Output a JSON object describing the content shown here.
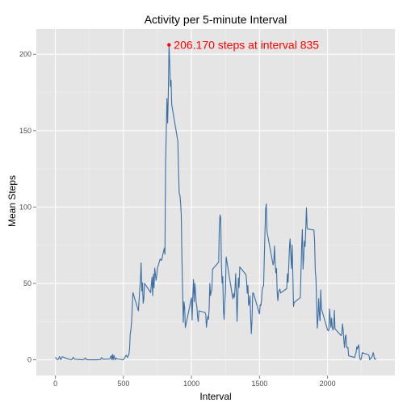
{
  "chart_data": {
    "type": "line",
    "title": "Activity per 5-minute Interval",
    "xlabel": "Interval",
    "ylabel": "Mean Steps",
    "xlim": [
      -140,
      2495
    ],
    "ylim": [
      -10.3,
      216.5
    ],
    "x_ticks": [
      0,
      500,
      1000,
      1500,
      2000
    ],
    "x_tick_labels": [
      "0",
      "500",
      "1000",
      "1500",
      "2000"
    ],
    "y_ticks": [
      0,
      50,
      100,
      150,
      200
    ],
    "y_tick_labels": [
      "0",
      "50",
      "100",
      "150",
      "200"
    ],
    "grid": true,
    "series": [
      {
        "color": "#3a6ea5",
        "points": [
          [
            0,
            1.7
          ],
          [
            10,
            0.3
          ],
          [
            20,
            0.1
          ],
          [
            30,
            2.1
          ],
          [
            40,
            0.0
          ],
          [
            50,
            2.0
          ],
          [
            100,
            0.3
          ],
          [
            110,
            0.2
          ],
          [
            120,
            0.0
          ],
          [
            130,
            1.6
          ],
          [
            140,
            0.5
          ],
          [
            150,
            0.3
          ],
          [
            200,
            0.0
          ],
          [
            210,
            0.3
          ],
          [
            220,
            1.2
          ],
          [
            230,
            0.0
          ],
          [
            240,
            0.0
          ],
          [
            300,
            0.0
          ],
          [
            330,
            0.1
          ],
          [
            340,
            1.5
          ],
          [
            350,
            0.3
          ],
          [
            400,
            0.5
          ],
          [
            410,
            2.6
          ],
          [
            415,
            0.0
          ],
          [
            420,
            3.5
          ],
          [
            425,
            0.0
          ],
          [
            430,
            3.0
          ],
          [
            435,
            1.1
          ],
          [
            440,
            0.0
          ],
          [
            445,
            1.2
          ],
          [
            450,
            0.6
          ],
          [
            500,
            0.0
          ],
          [
            520,
            3.0
          ],
          [
            530,
            1.5
          ],
          [
            540,
            3.5
          ],
          [
            545,
            7.0
          ],
          [
            550,
            17.0
          ],
          [
            555,
            19.5
          ],
          [
            560,
            25.0
          ],
          [
            570,
            44.0
          ],
          [
            580,
            41.0
          ],
          [
            590,
            38.0
          ],
          [
            600,
            35.0
          ],
          [
            610,
            32.0
          ],
          [
            620,
            46.0
          ],
          [
            625,
            52.0
          ],
          [
            630,
            63.5
          ],
          [
            635,
            45.0
          ],
          [
            640,
            50.5
          ],
          [
            645,
            37.0
          ],
          [
            650,
            40.0
          ],
          [
            655,
            50.0
          ],
          [
            700,
            44.0
          ],
          [
            705,
            49.0
          ],
          [
            710,
            54.0
          ],
          [
            715,
            42.0
          ],
          [
            720,
            56.0
          ],
          [
            725,
            47.0
          ],
          [
            730,
            60.0
          ],
          [
            740,
            52.0
          ],
          [
            745,
            55.0
          ],
          [
            750,
            60.0
          ],
          [
            760,
            63.0
          ],
          [
            770,
            66.0
          ],
          [
            780,
            65.0
          ],
          [
            790,
            69.0
          ],
          [
            800,
            73.0
          ],
          [
            805,
            69.0
          ],
          [
            810,
            129.0
          ],
          [
            815,
            150.0
          ],
          [
            820,
            171.0
          ],
          [
            825,
            155.0
          ],
          [
            830,
            175.0
          ],
          [
            835,
            206.2
          ],
          [
            840,
            195.0
          ],
          [
            845,
            179.0
          ],
          [
            850,
            183.0
          ],
          [
            855,
            167.0
          ],
          [
            900,
            143.0
          ],
          [
            905,
            124.0
          ],
          [
            910,
            109.0
          ],
          [
            915,
            108.0
          ],
          [
            920,
            103.0
          ],
          [
            925,
            95.0
          ],
          [
            930,
            66.0
          ],
          [
            935,
            45.0
          ],
          [
            940,
            24.5
          ],
          [
            945,
            38.0
          ],
          [
            950,
            34.5
          ],
          [
            955,
            21.0
          ],
          [
            1000,
            40.5
          ],
          [
            1005,
            26.0
          ],
          [
            1010,
            42.0
          ],
          [
            1015,
            52.5
          ],
          [
            1020,
            38.0
          ],
          [
            1025,
            50.0
          ],
          [
            1030,
            44.0
          ],
          [
            1035,
            37.0
          ],
          [
            1040,
            34.5
          ],
          [
            1045,
            28.0
          ],
          [
            1050,
            25.0
          ],
          [
            1055,
            32.0
          ],
          [
            1100,
            31.0
          ],
          [
            1105,
            29.7
          ],
          [
            1110,
            21.3
          ],
          [
            1115,
            25.5
          ],
          [
            1120,
            28.4
          ],
          [
            1125,
            26.5
          ],
          [
            1130,
            33.4
          ],
          [
            1135,
            50.0
          ],
          [
            1140,
            42.0
          ],
          [
            1145,
            44.6
          ],
          [
            1150,
            46.0
          ],
          [
            1155,
            59.2
          ],
          [
            1200,
            63.9
          ],
          [
            1205,
            87.7
          ],
          [
            1210,
            94.8
          ],
          [
            1215,
            92.8
          ],
          [
            1220,
            63.4
          ],
          [
            1225,
            50.2
          ],
          [
            1230,
            54.5
          ],
          [
            1235,
            32.4
          ],
          [
            1240,
            26.5
          ],
          [
            1245,
            37.7
          ],
          [
            1250,
            45.1
          ],
          [
            1255,
            67.3
          ],
          [
            1300,
            42.3
          ],
          [
            1305,
            39.9
          ],
          [
            1310,
            43.3
          ],
          [
            1315,
            40.9
          ],
          [
            1320,
            46.2
          ],
          [
            1325,
            56.4
          ],
          [
            1330,
            42.8
          ],
          [
            1335,
            25.1
          ],
          [
            1340,
            39.9
          ],
          [
            1345,
            53.5
          ],
          [
            1350,
            47.3
          ],
          [
            1355,
            60.8
          ],
          [
            1400,
            55.8
          ],
          [
            1405,
            51.9
          ],
          [
            1410,
            43.6
          ],
          [
            1415,
            48.7
          ],
          [
            1420,
            35.5
          ],
          [
            1425,
            37.5
          ],
          [
            1430,
            41.8
          ],
          [
            1435,
            27.5
          ],
          [
            1440,
            17.1
          ],
          [
            1445,
            26.1
          ],
          [
            1450,
            43.6
          ],
          [
            1455,
            43.8
          ],
          [
            1500,
            30.0
          ],
          [
            1505,
            36.1
          ],
          [
            1510,
            35.5
          ],
          [
            1515,
            38.8
          ],
          [
            1520,
            45.9
          ],
          [
            1525,
            47.8
          ],
          [
            1530,
            48.1
          ],
          [
            1535,
            65.3
          ],
          [
            1540,
            82.9
          ],
          [
            1545,
            98.7
          ],
          [
            1550,
            102.1
          ],
          [
            1555,
            83.96
          ],
          [
            1600,
            62.1
          ],
          [
            1605,
            64.1
          ],
          [
            1610,
            74.5
          ],
          [
            1615,
            63.2
          ],
          [
            1620,
            56.9
          ],
          [
            1625,
            59.8
          ],
          [
            1630,
            43.9
          ],
          [
            1635,
            38.6
          ],
          [
            1640,
            44.7
          ],
          [
            1645,
            45.5
          ],
          [
            1650,
            46.2
          ],
          [
            1655,
            43.7
          ],
          [
            1700,
            46.6
          ],
          [
            1705,
            56.3
          ],
          [
            1710,
            50.7
          ],
          [
            1715,
            61.2
          ],
          [
            1720,
            73.4
          ],
          [
            1725,
            79.1
          ],
          [
            1730,
            68.9
          ],
          [
            1735,
            59.7
          ],
          [
            1740,
            75.1
          ],
          [
            1745,
            56.5
          ],
          [
            1750,
            34.8
          ],
          [
            1755,
            37.5
          ],
          [
            1800,
            40.7
          ],
          [
            1805,
            58.0
          ],
          [
            1810,
            74.7
          ],
          [
            1815,
            85.3
          ],
          [
            1820,
            59.3
          ],
          [
            1825,
            67.8
          ],
          [
            1830,
            77.7
          ],
          [
            1835,
            74.2
          ],
          [
            1840,
            85.3
          ],
          [
            1845,
            99.5
          ],
          [
            1850,
            86.6
          ],
          [
            1855,
            85.6
          ],
          [
            1900,
            84.9
          ],
          [
            1905,
            77.8
          ],
          [
            1910,
            58.0
          ],
          [
            1915,
            53.4
          ],
          [
            1920,
            36.3
          ],
          [
            1925,
            20.7
          ],
          [
            1930,
            27.4
          ],
          [
            1935,
            40.0
          ],
          [
            1940,
            30.2
          ],
          [
            1945,
            25.5
          ],
          [
            1950,
            45.7
          ],
          [
            1955,
            33.5
          ],
          [
            2000,
            19.6
          ],
          [
            2005,
            19.0
          ],
          [
            2010,
            19.3
          ],
          [
            2015,
            33.3
          ],
          [
            2020,
            26.8
          ],
          [
            2025,
            21.2
          ],
          [
            2030,
            27.3
          ],
          [
            2035,
            21.3
          ],
          [
            2040,
            19.5
          ],
          [
            2045,
            21.3
          ],
          [
            2050,
            32.3
          ],
          [
            2055,
            20.2
          ],
          [
            2100,
            15.9
          ],
          [
            2105,
            17.2
          ],
          [
            2110,
            23.5
          ],
          [
            2115,
            19.2
          ],
          [
            2120,
            12.5
          ],
          [
            2125,
            8.0
          ],
          [
            2130,
            14.7
          ],
          [
            2135,
            16.3
          ],
          [
            2140,
            8.7
          ],
          [
            2145,
            7.8
          ],
          [
            2150,
            8.1
          ],
          [
            2155,
            2.6
          ],
          [
            2200,
            1.5
          ],
          [
            2205,
            3.7
          ],
          [
            2210,
            4.8
          ],
          [
            2215,
            8.5
          ],
          [
            2220,
            7.1
          ],
          [
            2225,
            8.7
          ],
          [
            2230,
            9.8
          ],
          [
            2235,
            2.2
          ],
          [
            2240,
            0.3
          ],
          [
            2245,
            0.1
          ],
          [
            2250,
            1.6
          ],
          [
            2255,
            4.6
          ],
          [
            2300,
            3.3
          ],
          [
            2305,
            2.8
          ],
          [
            2310,
            0.0
          ],
          [
            2315,
            0.8
          ],
          [
            2320,
            0.96
          ],
          [
            2325,
            1.6
          ],
          [
            2330,
            2.6
          ],
          [
            2335,
            4.7
          ],
          [
            2340,
            3.3
          ],
          [
            2345,
            0.6
          ],
          [
            2350,
            0.2
          ],
          [
            2355,
            1.1
          ]
        ]
      }
    ],
    "annotation": {
      "x": 835,
      "y": 206.17,
      "text": "206.170 steps at interval 835",
      "color": "#ff0000"
    },
    "colors": {
      "panel": "#e5e5e5",
      "grid_major": "#ffffff",
      "grid_minor": "#f2f2f2",
      "line": "#3a6ea5",
      "highlight": "#ff0000"
    }
  }
}
